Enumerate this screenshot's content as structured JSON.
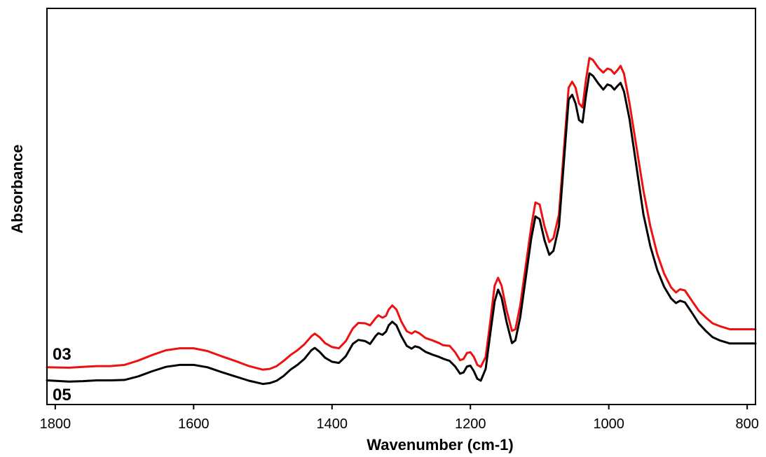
{
  "chart_data": {
    "type": "line",
    "title": "",
    "xlabel": "Wavenumber (cm-1)",
    "ylabel": "Absorbance",
    "xlim": [
      1812,
      788
    ],
    "ylim": [
      0,
      1
    ],
    "x_reversed": true,
    "y_ticks_shown": false,
    "grid": false,
    "x_ticks": [
      {
        "value": 1800,
        "label": "1800"
      },
      {
        "value": 1600,
        "label": "1600"
      },
      {
        "value": 1400,
        "label": "1400"
      },
      {
        "value": 1200,
        "label": "1200"
      },
      {
        "value": 1000,
        "label": "1000"
      },
      {
        "value": 800,
        "label": "800"
      }
    ],
    "series": [
      {
        "name": "03",
        "color": "#ee1111",
        "points": [
          [
            1812,
            0.094
          ],
          [
            1780,
            0.093
          ],
          [
            1760,
            0.095
          ],
          [
            1740,
            0.097
          ],
          [
            1720,
            0.097
          ],
          [
            1700,
            0.1
          ],
          [
            1680,
            0.111
          ],
          [
            1660,
            0.125
          ],
          [
            1640,
            0.137
          ],
          [
            1620,
            0.142
          ],
          [
            1600,
            0.142
          ],
          [
            1580,
            0.135
          ],
          [
            1560,
            0.122
          ],
          [
            1540,
            0.11
          ],
          [
            1520,
            0.097
          ],
          [
            1500,
            0.088
          ],
          [
            1490,
            0.09
          ],
          [
            1480,
            0.097
          ],
          [
            1470,
            0.11
          ],
          [
            1460,
            0.125
          ],
          [
            1450,
            0.137
          ],
          [
            1440,
            0.152
          ],
          [
            1430,
            0.172
          ],
          [
            1425,
            0.179
          ],
          [
            1418,
            0.17
          ],
          [
            1410,
            0.155
          ],
          [
            1400,
            0.145
          ],
          [
            1390,
            0.142
          ],
          [
            1380,
            0.16
          ],
          [
            1370,
            0.192
          ],
          [
            1362,
            0.206
          ],
          [
            1352,
            0.205
          ],
          [
            1345,
            0.2
          ],
          [
            1337,
            0.218
          ],
          [
            1333,
            0.225
          ],
          [
            1327,
            0.219
          ],
          [
            1322,
            0.224
          ],
          [
            1318,
            0.24
          ],
          [
            1313,
            0.25
          ],
          [
            1307,
            0.24
          ],
          [
            1300,
            0.21
          ],
          [
            1292,
            0.185
          ],
          [
            1285,
            0.179
          ],
          [
            1280,
            0.185
          ],
          [
            1274,
            0.18
          ],
          [
            1265,
            0.168
          ],
          [
            1255,
            0.162
          ],
          [
            1245,
            0.155
          ],
          [
            1240,
            0.15
          ],
          [
            1230,
            0.148
          ],
          [
            1222,
            0.132
          ],
          [
            1215,
            0.112
          ],
          [
            1210,
            0.115
          ],
          [
            1205,
            0.13
          ],
          [
            1200,
            0.132
          ],
          [
            1195,
            0.12
          ],
          [
            1190,
            0.1
          ],
          [
            1185,
            0.095
          ],
          [
            1178,
            0.12
          ],
          [
            1172,
            0.2
          ],
          [
            1165,
            0.3
          ],
          [
            1160,
            0.32
          ],
          [
            1155,
            0.3
          ],
          [
            1148,
            0.24
          ],
          [
            1140,
            0.186
          ],
          [
            1135,
            0.19
          ],
          [
            1128,
            0.25
          ],
          [
            1120,
            0.35
          ],
          [
            1112,
            0.45
          ],
          [
            1106,
            0.51
          ],
          [
            1100,
            0.505
          ],
          [
            1093,
            0.45
          ],
          [
            1086,
            0.41
          ],
          [
            1080,
            0.42
          ],
          [
            1072,
            0.48
          ],
          [
            1065,
            0.64
          ],
          [
            1058,
            0.8
          ],
          [
            1053,
            0.815
          ],
          [
            1048,
            0.8
          ],
          [
            1043,
            0.76
          ],
          [
            1038,
            0.75
          ],
          [
            1033,
            0.82
          ],
          [
            1028,
            0.875
          ],
          [
            1023,
            0.87
          ],
          [
            1015,
            0.85
          ],
          [
            1008,
            0.838
          ],
          [
            1002,
            0.848
          ],
          [
            997,
            0.845
          ],
          [
            992,
            0.835
          ],
          [
            987,
            0.845
          ],
          [
            983,
            0.855
          ],
          [
            978,
            0.835
          ],
          [
            970,
            0.76
          ],
          [
            960,
            0.65
          ],
          [
            950,
            0.54
          ],
          [
            940,
            0.45
          ],
          [
            930,
            0.38
          ],
          [
            920,
            0.33
          ],
          [
            910,
            0.296
          ],
          [
            903,
            0.283
          ],
          [
            897,
            0.291
          ],
          [
            890,
            0.288
          ],
          [
            880,
            0.262
          ],
          [
            870,
            0.237
          ],
          [
            860,
            0.22
          ],
          [
            850,
            0.205
          ],
          [
            840,
            0.198
          ],
          [
            825,
            0.19
          ],
          [
            788,
            0.19
          ]
        ]
      },
      {
        "name": "05",
        "color": "#000000",
        "points": [
          [
            1812,
            0.061
          ],
          [
            1780,
            0.058
          ],
          [
            1760,
            0.059
          ],
          [
            1740,
            0.061
          ],
          [
            1720,
            0.061
          ],
          [
            1700,
            0.062
          ],
          [
            1680,
            0.071
          ],
          [
            1660,
            0.084
          ],
          [
            1640,
            0.095
          ],
          [
            1620,
            0.1
          ],
          [
            1600,
            0.1
          ],
          [
            1580,
            0.094
          ],
          [
            1560,
            0.082
          ],
          [
            1540,
            0.071
          ],
          [
            1520,
            0.06
          ],
          [
            1500,
            0.052
          ],
          [
            1490,
            0.054
          ],
          [
            1480,
            0.06
          ],
          [
            1470,
            0.072
          ],
          [
            1460,
            0.088
          ],
          [
            1450,
            0.1
          ],
          [
            1440,
            0.115
          ],
          [
            1430,
            0.137
          ],
          [
            1425,
            0.143
          ],
          [
            1418,
            0.133
          ],
          [
            1410,
            0.118
          ],
          [
            1400,
            0.108
          ],
          [
            1390,
            0.105
          ],
          [
            1380,
            0.122
          ],
          [
            1370,
            0.153
          ],
          [
            1362,
            0.163
          ],
          [
            1352,
            0.16
          ],
          [
            1345,
            0.153
          ],
          [
            1337,
            0.173
          ],
          [
            1333,
            0.18
          ],
          [
            1327,
            0.176
          ],
          [
            1322,
            0.184
          ],
          [
            1318,
            0.2
          ],
          [
            1313,
            0.209
          ],
          [
            1307,
            0.2
          ],
          [
            1300,
            0.173
          ],
          [
            1292,
            0.148
          ],
          [
            1285,
            0.141
          ],
          [
            1280,
            0.147
          ],
          [
            1274,
            0.144
          ],
          [
            1265,
            0.133
          ],
          [
            1255,
            0.126
          ],
          [
            1245,
            0.12
          ],
          [
            1240,
            0.116
          ],
          [
            1230,
            0.11
          ],
          [
            1222,
            0.096
          ],
          [
            1215,
            0.078
          ],
          [
            1210,
            0.081
          ],
          [
            1205,
            0.096
          ],
          [
            1200,
            0.098
          ],
          [
            1195,
            0.084
          ],
          [
            1190,
            0.065
          ],
          [
            1185,
            0.06
          ],
          [
            1178,
            0.09
          ],
          [
            1172,
            0.17
          ],
          [
            1165,
            0.26
          ],
          [
            1160,
            0.29
          ],
          [
            1155,
            0.27
          ],
          [
            1148,
            0.21
          ],
          [
            1140,
            0.155
          ],
          [
            1135,
            0.162
          ],
          [
            1128,
            0.22
          ],
          [
            1120,
            0.32
          ],
          [
            1112,
            0.42
          ],
          [
            1106,
            0.475
          ],
          [
            1100,
            0.468
          ],
          [
            1093,
            0.415
          ],
          [
            1086,
            0.378
          ],
          [
            1080,
            0.388
          ],
          [
            1072,
            0.45
          ],
          [
            1065,
            0.61
          ],
          [
            1058,
            0.77
          ],
          [
            1053,
            0.782
          ],
          [
            1048,
            0.76
          ],
          [
            1043,
            0.718
          ],
          [
            1038,
            0.712
          ],
          [
            1033,
            0.78
          ],
          [
            1028,
            0.836
          ],
          [
            1023,
            0.83
          ],
          [
            1015,
            0.81
          ],
          [
            1008,
            0.795
          ],
          [
            1002,
            0.808
          ],
          [
            997,
            0.805
          ],
          [
            992,
            0.795
          ],
          [
            987,
            0.805
          ],
          [
            983,
            0.812
          ],
          [
            978,
            0.79
          ],
          [
            970,
            0.72
          ],
          [
            960,
            0.6
          ],
          [
            950,
            0.48
          ],
          [
            940,
            0.4
          ],
          [
            930,
            0.34
          ],
          [
            920,
            0.297
          ],
          [
            910,
            0.268
          ],
          [
            903,
            0.256
          ],
          [
            897,
            0.262
          ],
          [
            890,
            0.258
          ],
          [
            880,
            0.232
          ],
          [
            870,
            0.205
          ],
          [
            860,
            0.186
          ],
          [
            850,
            0.17
          ],
          [
            840,
            0.162
          ],
          [
            825,
            0.154
          ],
          [
            788,
            0.154
          ]
        ]
      }
    ],
    "series_labels": [
      {
        "text": "03",
        "series": "03"
      },
      {
        "text": "05",
        "series": "05"
      }
    ]
  }
}
